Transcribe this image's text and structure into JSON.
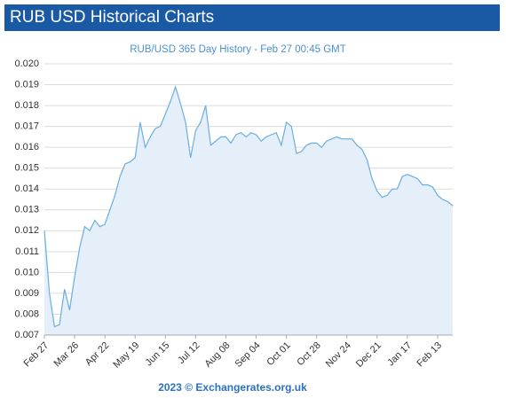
{
  "header": {
    "title": "RUB USD Historical Charts"
  },
  "footer": {
    "text": "2023 © Exchangerates.org.uk"
  },
  "chart_data": {
    "type": "area",
    "title": "RUB/USD 365 Day History - Feb 27 00:45 GMT",
    "series": [
      {
        "name": "RUB/USD",
        "color": "#6aaee0",
        "fill": "#e4eff9",
        "values": [
          0.012,
          0.009,
          0.0074,
          0.0075,
          0.0092,
          0.0082,
          0.0098,
          0.0112,
          0.0122,
          0.012,
          0.0125,
          0.0122,
          0.0123,
          0.013,
          0.0137,
          0.0146,
          0.0152,
          0.0153,
          0.0155,
          0.0172,
          0.016,
          0.0165,
          0.0169,
          0.017,
          0.0176,
          0.0182,
          0.0189,
          0.0181,
          0.0172,
          0.0155,
          0.0168,
          0.0172,
          0.018,
          0.0161,
          0.0163,
          0.0165,
          0.0165,
          0.0162,
          0.0166,
          0.0167,
          0.0165,
          0.0167,
          0.0166,
          0.0163,
          0.0165,
          0.0166,
          0.0167,
          0.0161,
          0.0172,
          0.017,
          0.0157,
          0.0158,
          0.0161,
          0.0162,
          0.0162,
          0.016,
          0.0163,
          0.0164,
          0.0165,
          0.0164,
          0.0164,
          0.0164,
          0.0161,
          0.0159,
          0.0154,
          0.0145,
          0.0139,
          0.0136,
          0.0137,
          0.014,
          0.014,
          0.0146,
          0.0147,
          0.0146,
          0.0145,
          0.0142,
          0.0142,
          0.0141,
          0.0137,
          0.0135,
          0.0134,
          0.0132
        ]
      }
    ],
    "xlim": [
      0,
      81
    ],
    "xticks": [
      {
        "value": 0,
        "label": "Feb 27"
      },
      {
        "value": 6,
        "label": "Mar 26"
      },
      {
        "value": 12,
        "label": "Apr 22"
      },
      {
        "value": 18,
        "label": "May 19"
      },
      {
        "value": 24,
        "label": "Jun 15"
      },
      {
        "value": 30,
        "label": "Jul 12"
      },
      {
        "value": 36,
        "label": "Aug 08"
      },
      {
        "value": 42,
        "label": "Sep 04"
      },
      {
        "value": 48,
        "label": "Oct 01"
      },
      {
        "value": 54,
        "label": "Oct 28"
      },
      {
        "value": 60,
        "label": "Nov 24"
      },
      {
        "value": 66,
        "label": "Dec 21"
      },
      {
        "value": 72,
        "label": "Jan 17"
      },
      {
        "value": 78,
        "label": "Feb 13"
      }
    ],
    "ylim": [
      0.007,
      0.02
    ],
    "yticks": [
      0.007,
      0.008,
      0.009,
      {
        "value": 0.01,
        "label": "0.010"
      },
      0.011,
      0.012,
      0.013,
      0.014,
      0.015,
      0.016,
      0.017,
      0.018,
      0.019,
      {
        "value": 0.02,
        "label": "0.020"
      }
    ],
    "grid": true
  }
}
